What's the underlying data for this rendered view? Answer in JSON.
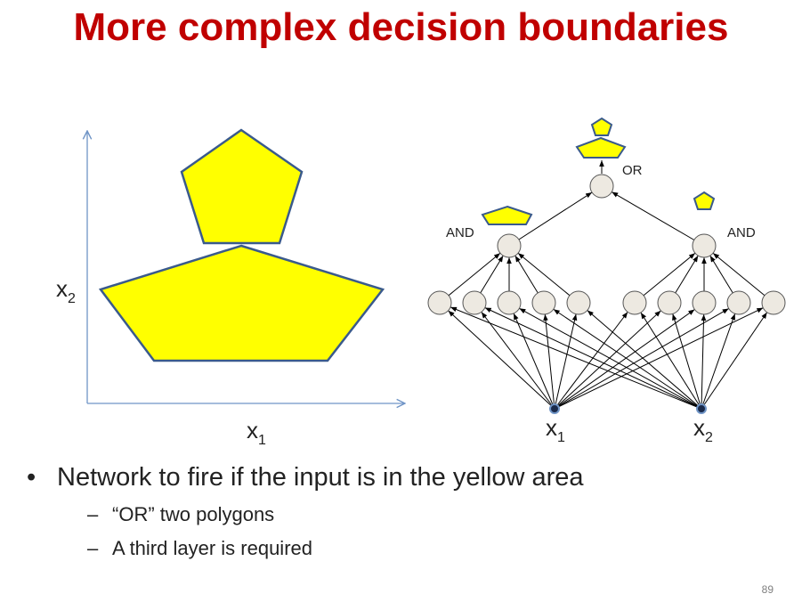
{
  "title": "More complex decision boundaries",
  "plot": {
    "y_axis_label": "x",
    "y_axis_sub": "2",
    "x_axis_label": "x",
    "x_axis_sub": "1"
  },
  "network": {
    "or_label": "OR",
    "and_left_label": "AND",
    "and_right_label": "AND",
    "input1_label": "x",
    "input1_sub": "1",
    "input2_label": "x",
    "input2_sub": "2"
  },
  "bullets": {
    "main": "Network to fire if the input is in the yellow area",
    "sub1": "“OR” two polygons",
    "sub2": "A third layer is required",
    "marker": "•",
    "dash": "–"
  },
  "page_number": "89",
  "colors": {
    "title": "#c00000",
    "polygon_fill": "#ffff00",
    "polygon_stroke": "#3a5a8c",
    "axis": "#6f94c6",
    "neuron_fill": "#ede9e1"
  }
}
